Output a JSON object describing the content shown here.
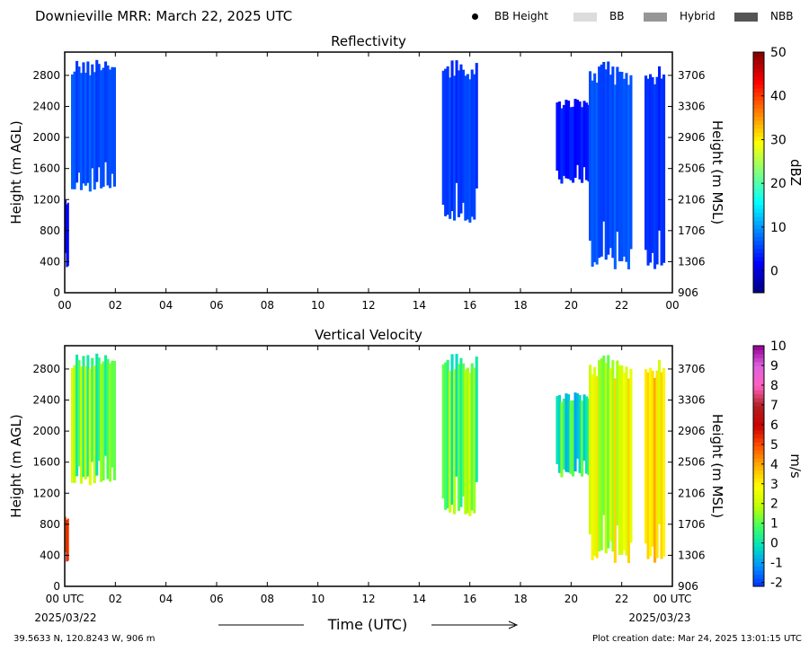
{
  "header": {
    "title": "Downieville MRR:  March 22, 2025 UTC",
    "legend": [
      {
        "label": "BB Height",
        "kind": "dot",
        "color": "#000000"
      },
      {
        "label": "BB",
        "kind": "swatch",
        "color": "#dcdcdc"
      },
      {
        "label": "Hybrid",
        "kind": "swatch",
        "color": "#969696"
      },
      {
        "label": "NBB",
        "kind": "swatch",
        "color": "#555555"
      }
    ]
  },
  "chart_data": [
    {
      "type": "heatmap",
      "title": "Reflectivity",
      "xlabel": "",
      "ylabel": "Height (m AGL)",
      "ylabel_right": "Height (m MSL)",
      "x_ticks": [
        "00",
        "02",
        "04",
        "06",
        "08",
        "10",
        "12",
        "14",
        "16",
        "18",
        "20",
        "22",
        "00"
      ],
      "xlim": [
        0,
        24
      ],
      "ylim": [
        0,
        3100
      ],
      "y_ticks": [
        0,
        400,
        800,
        1200,
        1600,
        2000,
        2400,
        2800
      ],
      "y_ticks_right": [
        906,
        1306,
        1706,
        2106,
        2506,
        2906,
        3306,
        3706
      ],
      "colorbar": {
        "label": "dBZ",
        "min": -5,
        "max": 50,
        "ticks": [
          0,
          10,
          20,
          30,
          40,
          50
        ],
        "colors": [
          "#00007f",
          "#0000ff",
          "#0080ff",
          "#00ffff",
          "#80ff80",
          "#ffff00",
          "#ff8000",
          "#ff0000",
          "#7f0000"
        ]
      },
      "echo_regions": [
        {
          "t_start": 0.25,
          "t_end": 2.0,
          "h_bottom": 1300,
          "h_top": 3000,
          "dbz": 6
        },
        {
          "t_start": 0.0,
          "t_end": 0.15,
          "h_bottom": 300,
          "h_top": 1200,
          "dbz": 2
        },
        {
          "t_start": 14.9,
          "t_end": 16.3,
          "h_bottom": 900,
          "h_top": 3000,
          "dbz": 5
        },
        {
          "t_start": 19.4,
          "t_end": 21.0,
          "h_bottom": 1400,
          "h_top": 2500,
          "dbz": 3
        },
        {
          "t_start": 20.7,
          "t_end": 22.4,
          "h_bottom": 300,
          "h_top": 3000,
          "dbz": 6
        },
        {
          "t_start": 22.9,
          "t_end": 23.7,
          "h_bottom": 300,
          "h_top": 3000,
          "dbz": 4
        }
      ]
    },
    {
      "type": "heatmap",
      "title": "Vertical Velocity",
      "xlabel": "Time (UTC)",
      "ylabel": "Height (m AGL)",
      "ylabel_right": "Height (m MSL)",
      "x_ticks": [
        "00 UTC",
        "02",
        "04",
        "06",
        "08",
        "10",
        "12",
        "14",
        "16",
        "18",
        "20",
        "22",
        "00 UTC"
      ],
      "x_subticks": {
        "first": "2025/03/22",
        "last": "2025/03/23"
      },
      "xlim": [
        0,
        24
      ],
      "ylim": [
        0,
        3100
      ],
      "y_ticks": [
        0,
        400,
        800,
        1200,
        1600,
        2000,
        2400,
        2800
      ],
      "y_ticks_right": [
        906,
        1306,
        1706,
        2106,
        2506,
        2906,
        3306,
        3706
      ],
      "colorbar": {
        "label": "m/s",
        "min": -2.2,
        "max": 10,
        "ticks": [
          -2,
          -1,
          0,
          1,
          2,
          3,
          4,
          5,
          6,
          7,
          8,
          9,
          10
        ],
        "colors": [
          "#0030ff",
          "#0090ff",
          "#00e0c0",
          "#40ff60",
          "#c0ff00",
          "#ffff00",
          "#ffb000",
          "#ff5000",
          "#cc0000",
          "#b02020",
          "#ff60c0",
          "#e060e0",
          "#900090"
        ]
      },
      "echo_regions": [
        {
          "t_start": 0.25,
          "t_end": 2.0,
          "h_bottom": 1300,
          "h_top": 3000,
          "ms": 1.2
        },
        {
          "t_start": 0.0,
          "t_end": 0.15,
          "h_bottom": 300,
          "h_top": 900,
          "ms": 5.5
        },
        {
          "t_start": 14.9,
          "t_end": 16.3,
          "h_bottom": 900,
          "h_top": 3000,
          "ms": 1.0
        },
        {
          "t_start": 19.4,
          "t_end": 21.0,
          "h_bottom": 1400,
          "h_top": 2500,
          "ms": 0.3
        },
        {
          "t_start": 20.7,
          "t_end": 22.4,
          "h_bottom": 300,
          "h_top": 3000,
          "ms": 2.2
        },
        {
          "t_start": 22.9,
          "t_end": 23.7,
          "h_bottom": 300,
          "h_top": 3000,
          "ms": 2.8
        }
      ]
    }
  ],
  "footer": {
    "location": "39.5633 N, 120.8243 W, 906 m",
    "creation_date": "Plot creation date: Mar 24, 2025 13:01:15 UTC"
  }
}
